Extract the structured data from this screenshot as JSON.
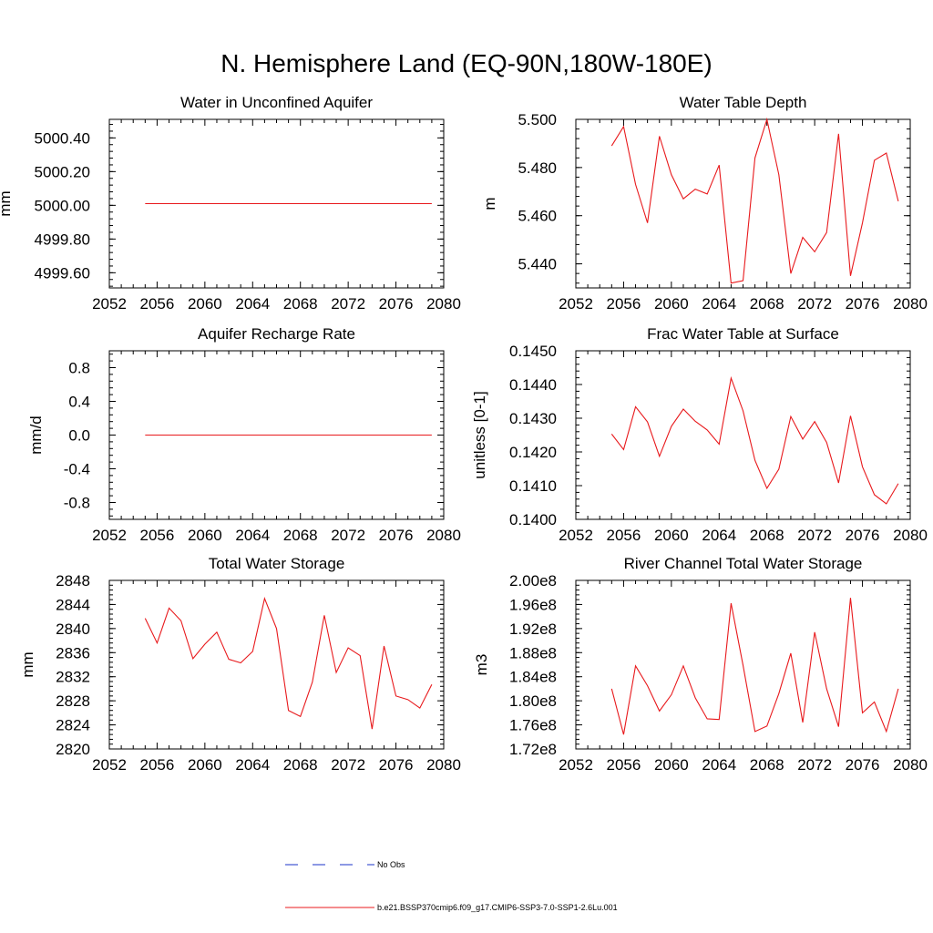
{
  "title": "N. Hemisphere Land (EQ-90N,180W-180E)",
  "colors": {
    "model_line": "#e8191c",
    "obs_line": "#1a33c9",
    "axis": "#000000"
  },
  "legend": {
    "obs_label": "No Obs",
    "model_label": "b.e21.BSSP370cmip6.f09_g17.CMIP6-SSP3-7.0-SSP1-2.6Lu.001"
  },
  "chart_data": [
    {
      "type": "line",
      "title": "Water in Unconfined Aquifer",
      "ylabel": "mm",
      "xlim": [
        2052,
        2080
      ],
      "ylim": [
        4999.51,
        5000.51
      ],
      "xticks": [
        2052,
        2056,
        2060,
        2064,
        2068,
        2072,
        2076,
        2080
      ],
      "yticks": [
        4999.6,
        4999.8,
        5000.0,
        5000.2,
        5000.4
      ],
      "ytick_labels": [
        "4999.60",
        "4999.80",
        "5000.00",
        "5000.20",
        "5000.40"
      ],
      "series": [
        {
          "x": [
            2055,
            2056,
            2057,
            2058,
            2059,
            2060,
            2061,
            2062,
            2063,
            2064,
            2065,
            2066,
            2067,
            2068,
            2069,
            2070,
            2071,
            2072,
            2073,
            2074,
            2075,
            2076,
            2077,
            2078,
            2079
          ],
          "values": [
            5000.01,
            5000.01,
            5000.01,
            5000.01,
            5000.01,
            5000.01,
            5000.01,
            5000.01,
            5000.01,
            5000.01,
            5000.01,
            5000.01,
            5000.01,
            5000.01,
            5000.01,
            5000.01,
            5000.01,
            5000.01,
            5000.01,
            5000.01,
            5000.01,
            5000.01,
            5000.01,
            5000.01,
            5000.01
          ]
        }
      ]
    },
    {
      "type": "line",
      "title": "Water Table Depth",
      "ylabel": "m",
      "xlim": [
        2052,
        2080
      ],
      "ylim": [
        5.43,
        5.5
      ],
      "xticks": [
        2052,
        2056,
        2060,
        2064,
        2068,
        2072,
        2076,
        2080
      ],
      "yticks": [
        5.44,
        5.46,
        5.48,
        5.5
      ],
      "ytick_labels": [
        "5.440",
        "5.460",
        "5.480",
        "5.500"
      ],
      "series": [
        {
          "x": [
            2055,
            2056,
            2057,
            2058,
            2059,
            2060,
            2061,
            2062,
            2063,
            2064,
            2065,
            2066,
            2067,
            2068,
            2069,
            2070,
            2071,
            2072,
            2073,
            2074,
            2075,
            2076,
            2077,
            2078,
            2079
          ],
          "values": [
            5.489,
            5.497,
            5.473,
            5.457,
            5.493,
            5.477,
            5.467,
            5.471,
            5.469,
            5.481,
            5.432,
            5.433,
            5.484,
            5.5,
            5.477,
            5.436,
            5.451,
            5.445,
            5.453,
            5.494,
            5.435,
            5.457,
            5.483,
            5.486,
            5.466
          ]
        }
      ]
    },
    {
      "type": "line",
      "title": "Aquifer Recharge Rate",
      "ylabel": "mm/d",
      "xlim": [
        2052,
        2080
      ],
      "ylim": [
        -1.0,
        1.0
      ],
      "xticks": [
        2052,
        2056,
        2060,
        2064,
        2068,
        2072,
        2076,
        2080
      ],
      "yticks": [
        -0.8,
        -0.4,
        0.0,
        0.4,
        0.8
      ],
      "ytick_labels": [
        "-0.8",
        "-0.4",
        "0.0",
        "0.4",
        "0.8"
      ],
      "series": [
        {
          "x": [
            2055,
            2056,
            2057,
            2058,
            2059,
            2060,
            2061,
            2062,
            2063,
            2064,
            2065,
            2066,
            2067,
            2068,
            2069,
            2070,
            2071,
            2072,
            2073,
            2074,
            2075,
            2076,
            2077,
            2078,
            2079
          ],
          "values": [
            0,
            0,
            0,
            0,
            0,
            0,
            0,
            0,
            0,
            0,
            0,
            0,
            0,
            0,
            0,
            0,
            0,
            0,
            0,
            0,
            0,
            0,
            0,
            0,
            0
          ]
        }
      ]
    },
    {
      "type": "line",
      "title": "Frac Water Table at Surface",
      "ylabel": "unitless [0-1]",
      "xlim": [
        2052,
        2080
      ],
      "ylim": [
        0.14,
        0.145
      ],
      "xticks": [
        2052,
        2056,
        2060,
        2064,
        2068,
        2072,
        2076,
        2080
      ],
      "yticks": [
        0.14,
        0.141,
        0.142,
        0.143,
        0.144,
        0.145
      ],
      "ytick_labels": [
        "0.1400",
        "0.1410",
        "0.1420",
        "0.1430",
        "0.1440",
        "0.1450"
      ],
      "series": [
        {
          "x": [
            2055,
            2056,
            2057,
            2058,
            2059,
            2060,
            2061,
            2062,
            2063,
            2064,
            2065,
            2066,
            2067,
            2068,
            2069,
            2070,
            2071,
            2072,
            2073,
            2074,
            2075,
            2076,
            2077,
            2078,
            2079
          ],
          "values": [
            0.14253,
            0.14207,
            0.14334,
            0.14289,
            0.14187,
            0.14276,
            0.14327,
            0.14291,
            0.14265,
            0.14223,
            0.14419,
            0.14322,
            0.14175,
            0.14092,
            0.14149,
            0.14305,
            0.14238,
            0.1429,
            0.14228,
            0.14108,
            0.14307,
            0.14156,
            0.14073,
            0.14046,
            0.14106
          ]
        }
      ]
    },
    {
      "type": "line",
      "title": "Total Water Storage",
      "ylabel": "mm",
      "xlim": [
        2052,
        2080
      ],
      "ylim": [
        2820,
        2848
      ],
      "xticks": [
        2052,
        2056,
        2060,
        2064,
        2068,
        2072,
        2076,
        2080
      ],
      "yticks": [
        2820,
        2824,
        2828,
        2832,
        2836,
        2840,
        2844,
        2848
      ],
      "ytick_labels": [
        "2820",
        "2824",
        "2828",
        "2832",
        "2836",
        "2840",
        "2844",
        "2848"
      ],
      "series": [
        {
          "x": [
            2055,
            2056,
            2057,
            2058,
            2059,
            2060,
            2061,
            2062,
            2063,
            2064,
            2065,
            2066,
            2067,
            2068,
            2069,
            2070,
            2071,
            2072,
            2073,
            2074,
            2075,
            2076,
            2077,
            2078,
            2079
          ],
          "values": [
            2841.7,
            2837.6,
            2843.4,
            2841.3,
            2835.0,
            2837.4,
            2839.4,
            2834.9,
            2834.3,
            2836.2,
            2845.0,
            2840.0,
            2826.4,
            2825.4,
            2831.1,
            2842.2,
            2832.7,
            2836.8,
            2835.5,
            2823.3,
            2837.1,
            2828.8,
            2828.2,
            2826.8,
            2830.7
          ]
        }
      ]
    },
    {
      "type": "line",
      "title": "River Channel Total Water Storage",
      "ylabel": "m3",
      "xlim": [
        2052,
        2080
      ],
      "ylim": [
        172000000,
        200000000
      ],
      "xticks": [
        2052,
        2056,
        2060,
        2064,
        2068,
        2072,
        2076,
        2080
      ],
      "yticks": [
        172000000,
        176000000,
        180000000,
        184000000,
        188000000,
        192000000,
        196000000,
        200000000
      ],
      "ytick_labels": [
        "1.72e8",
        "1.76e8",
        "1.80e8",
        "1.84e8",
        "1.88e8",
        "1.92e8",
        "1.96e8",
        "2.00e8"
      ],
      "series": [
        {
          "x": [
            2055,
            2056,
            2057,
            2058,
            2059,
            2060,
            2061,
            2062,
            2063,
            2064,
            2065,
            2066,
            2067,
            2068,
            2069,
            2070,
            2071,
            2072,
            2073,
            2074,
            2075,
            2076,
            2077,
            2078,
            2079
          ],
          "values": [
            182000000,
            174400000,
            185800000,
            182500000,
            178300000,
            181000000,
            185800000,
            180500000,
            177000000,
            176900000,
            196200000,
            185900000,
            174900000,
            175800000,
            181200000,
            187900000,
            176400000,
            191400000,
            182000000,
            175700000,
            197100000,
            178000000,
            179800000,
            174900000,
            182000000
          ]
        }
      ]
    }
  ]
}
